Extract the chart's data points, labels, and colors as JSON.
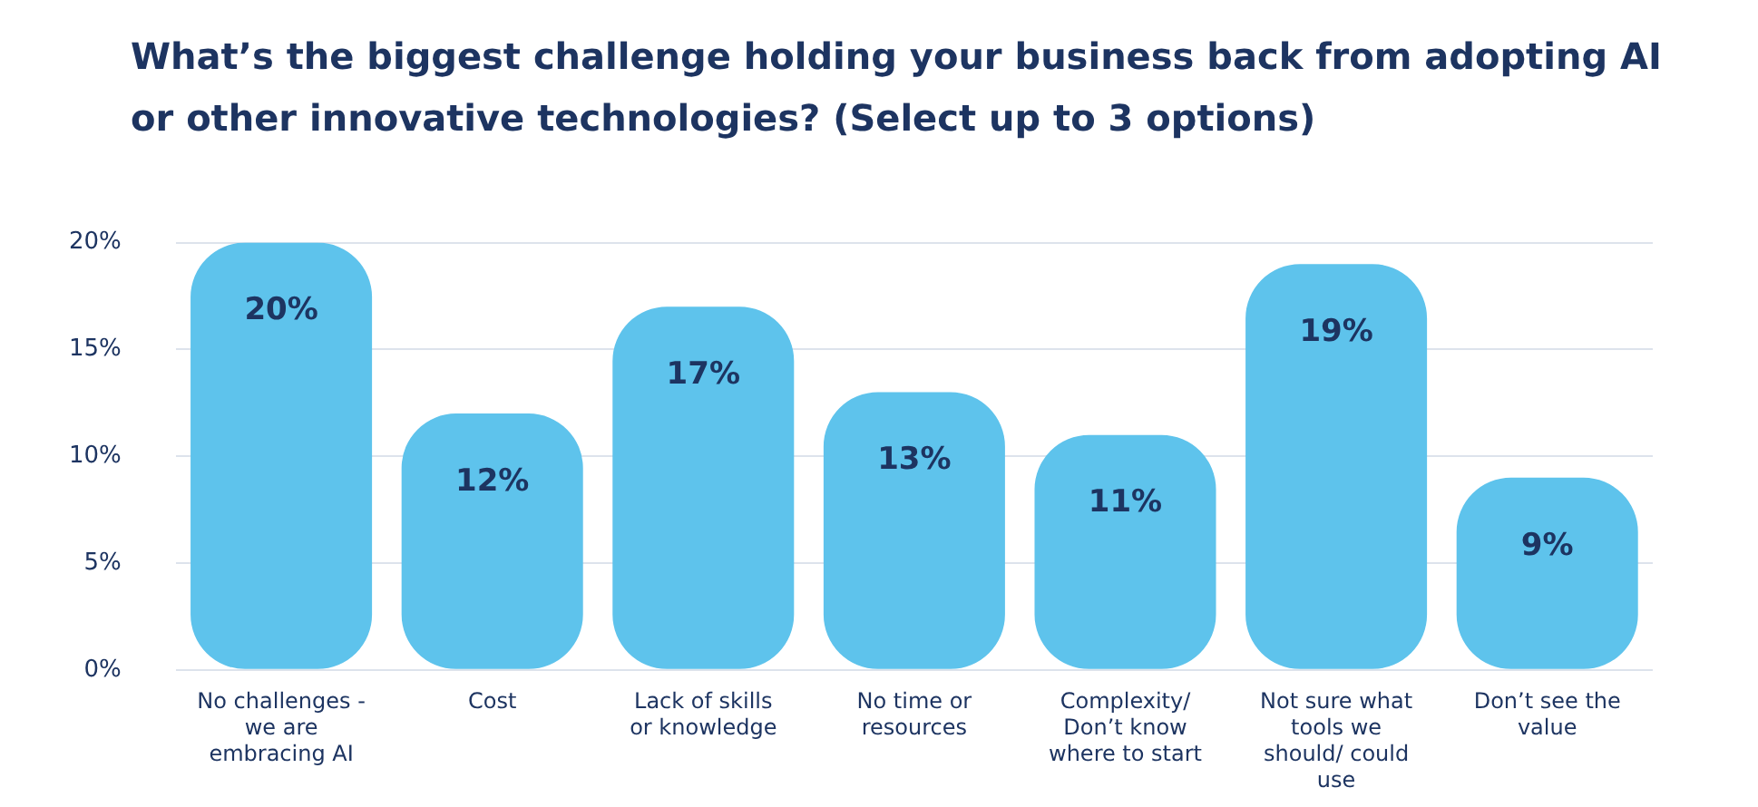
{
  "chart_data": {
    "type": "bar",
    "title": "What’s the biggest challenge holding your business back from adopting AI or other innovative technologies? (Select up to 3 options)",
    "categories": [
      "No challenges - we are embracing AI",
      "Cost",
      "Lack of skills or knowledge",
      "No time or resources",
      "Complexity/ Don’t know where to start",
      "Not sure what tools we should/ could use",
      "Don’t see the value"
    ],
    "values": [
      20,
      12,
      17,
      13,
      11,
      19,
      9
    ],
    "color": "#5ec3ec",
    "ylim": [
      0,
      20
    ],
    "yticks": [
      {
        "value": 0,
        "label": "0%"
      },
      {
        "value": 5,
        "label": "5%"
      },
      {
        "value": 10,
        "label": "10%"
      },
      {
        "value": 15,
        "label": "15%"
      },
      {
        "value": 20,
        "label": "20%"
      }
    ],
    "value_labels": [
      "20%",
      "12%",
      "17%",
      "13%",
      "11%",
      "19%",
      "9%"
    ],
    "grid": "y",
    "legend": false
  }
}
